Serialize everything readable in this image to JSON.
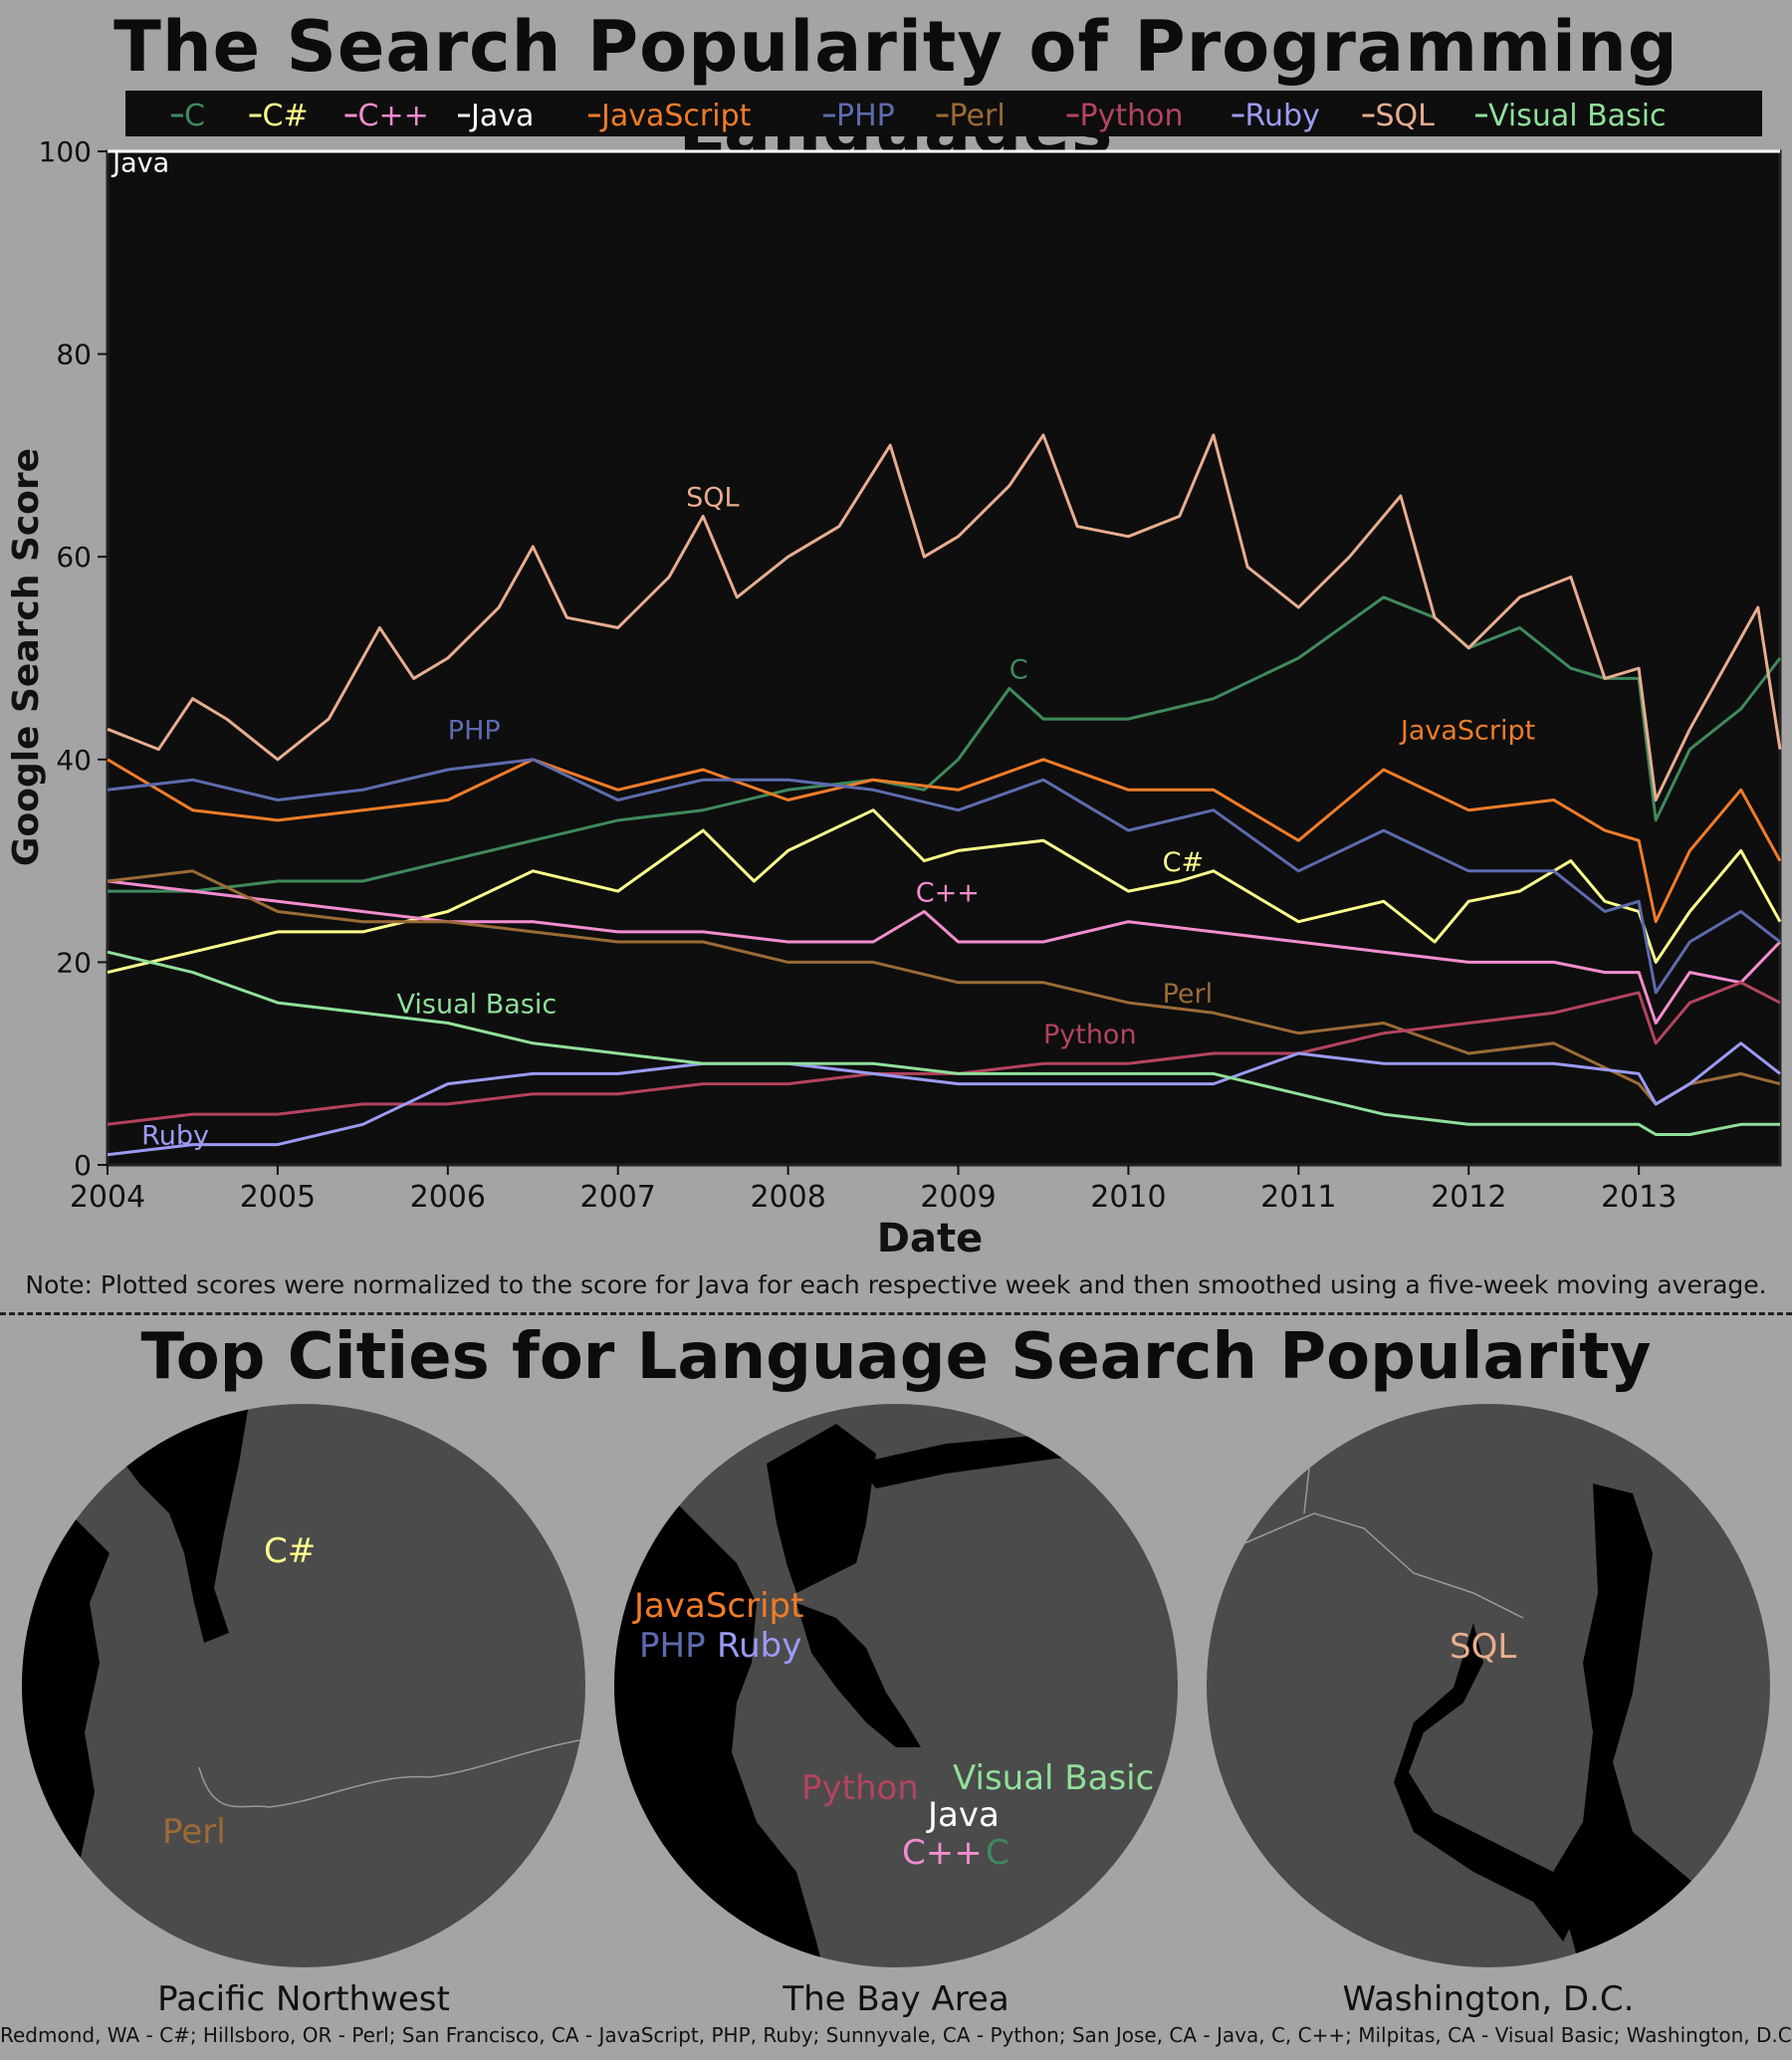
{
  "title": "The Search Popularity of Programming Languages",
  "note": "Note: Plotted scores were normalized to the score for Java for each respective week and then smoothed using a five-week moving average.",
  "subtitle": "Top Cities for Language Search Popularity",
  "footer": "Redmond, WA - C#; Hillsboro, OR - Perl; San Francisco, CA - JavaScript, PHP, Ruby; Sunnyvale, CA - Python; San Jose, CA - Java, C, C++; Milpitas, CA - Visual Basic; Washington, D.C. - SQL",
  "chart_data": {
    "type": "line",
    "xlabel": "Date",
    "ylabel": "Google Search Score",
    "xlim": [
      2004.0,
      2013.83
    ],
    "ylim": [
      0,
      100
    ],
    "x_ticks": [
      "2004",
      "2005",
      "2006",
      "2007",
      "2008",
      "2009",
      "2010",
      "2011",
      "2012",
      "2013"
    ],
    "y_ticks": [
      0,
      20,
      40,
      60,
      80,
      100
    ],
    "grid": false,
    "legend_position": "top",
    "legend": [
      "C",
      "C#",
      "C++",
      "Java",
      "JavaScript",
      "PHP",
      "Perl",
      "Python",
      "Ruby",
      "SQL",
      "Visual Basic"
    ],
    "series": [
      {
        "name": "C",
        "color": "#3f8a5c",
        "label": "C",
        "label_at": [
          2009.3,
          48
        ],
        "x": [
          2004.0,
          2004.5,
          2005.0,
          2005.5,
          2006.0,
          2006.5,
          2007.0,
          2007.5,
          2008.0,
          2008.5,
          2008.8,
          2009.0,
          2009.3,
          2009.5,
          2010.0,
          2010.5,
          2011.0,
          2011.5,
          2011.8,
          2012.0,
          2012.3,
          2012.6,
          2012.8,
          2013.0,
          2013.1,
          2013.3,
          2013.6,
          2013.83
        ],
        "y": [
          27,
          27,
          28,
          28,
          30,
          32,
          34,
          35,
          37,
          38,
          37,
          40,
          47,
          44,
          44,
          46,
          50,
          56,
          54,
          51,
          53,
          49,
          48,
          48,
          34,
          41,
          45,
          50
        ]
      },
      {
        "name": "C#",
        "color": "#fdfd8c",
        "label": "C#",
        "label_at": [
          2010.2,
          29
        ],
        "x": [
          2004.0,
          2004.5,
          2005.0,
          2005.5,
          2006.0,
          2006.5,
          2007.0,
          2007.5,
          2007.8,
          2008.0,
          2008.5,
          2008.8,
          2009.0,
          2009.5,
          2010.0,
          2010.3,
          2010.5,
          2011.0,
          2011.5,
          2011.8,
          2012.0,
          2012.3,
          2012.6,
          2012.8,
          2013.0,
          2013.1,
          2013.3,
          2013.6,
          2013.83
        ],
        "y": [
          19,
          21,
          23,
          23,
          25,
          29,
          27,
          33,
          28,
          31,
          35,
          30,
          31,
          32,
          27,
          28,
          29,
          24,
          26,
          22,
          26,
          27,
          30,
          26,
          25,
          20,
          25,
          31,
          24
        ]
      },
      {
        "name": "C++",
        "color": "#f38dcf",
        "label": "C++",
        "label_at": [
          2008.75,
          26
        ],
        "x": [
          2004.0,
          2004.5,
          2005.0,
          2005.5,
          2006.0,
          2006.5,
          2007.0,
          2007.5,
          2008.0,
          2008.5,
          2008.8,
          2009.0,
          2009.5,
          2010.0,
          2010.5,
          2011.0,
          2011.5,
          2012.0,
          2012.5,
          2012.8,
          2013.0,
          2013.1,
          2013.3,
          2013.6,
          2013.83
        ],
        "y": [
          28,
          27,
          26,
          25,
          24,
          24,
          23,
          23,
          22,
          22,
          25,
          22,
          22,
          24,
          23,
          22,
          21,
          20,
          20,
          19,
          19,
          14,
          19,
          18,
          22
        ]
      },
      {
        "name": "Java",
        "color": "#ffffff",
        "label": "Java",
        "label_at": [
          2004.03,
          98
        ],
        "x": [
          2004.0,
          2013.83
        ],
        "y": [
          100,
          100
        ]
      },
      {
        "name": "JavaScript",
        "color": "#f07c28",
        "label": "JavaScript",
        "label_at": [
          2011.6,
          42
        ],
        "x": [
          2004.0,
          2004.5,
          2005.0,
          2005.5,
          2006.0,
          2006.5,
          2007.0,
          2007.5,
          2008.0,
          2008.5,
          2009.0,
          2009.5,
          2010.0,
          2010.5,
          2011.0,
          2011.5,
          2012.0,
          2012.5,
          2012.8,
          2013.0,
          2013.1,
          2013.3,
          2013.6,
          2013.83
        ],
        "y": [
          40,
          35,
          34,
          35,
          36,
          40,
          37,
          39,
          36,
          38,
          37,
          40,
          37,
          37,
          32,
          39,
          35,
          36,
          33,
          32,
          24,
          31,
          37,
          30
        ]
      },
      {
        "name": "PHP",
        "color": "#5d6bae",
        "label": "PHP",
        "label_at": [
          2006.0,
          42
        ],
        "x": [
          2004.0,
          2004.5,
          2005.0,
          2005.5,
          2006.0,
          2006.5,
          2007.0,
          2007.5,
          2008.0,
          2008.5,
          2009.0,
          2009.5,
          2010.0,
          2010.5,
          2011.0,
          2011.5,
          2012.0,
          2012.5,
          2012.8,
          2013.0,
          2013.1,
          2013.3,
          2013.6,
          2013.83
        ],
        "y": [
          37,
          38,
          36,
          37,
          39,
          40,
          36,
          38,
          38,
          37,
          35,
          38,
          33,
          35,
          29,
          33,
          29,
          29,
          25,
          26,
          17,
          22,
          25,
          22
        ]
      },
      {
        "name": "Perl",
        "color": "#9b6b36",
        "label": "Perl",
        "label_at": [
          2010.2,
          16
        ],
        "x": [
          2004.0,
          2004.5,
          2005.0,
          2005.5,
          2006.0,
          2006.5,
          2007.0,
          2007.5,
          2008.0,
          2008.5,
          2009.0,
          2009.5,
          2010.0,
          2010.5,
          2011.0,
          2011.5,
          2012.0,
          2012.5,
          2013.0,
          2013.1,
          2013.3,
          2013.6,
          2013.83
        ],
        "y": [
          28,
          29,
          25,
          24,
          24,
          23,
          22,
          22,
          20,
          20,
          18,
          18,
          16,
          15,
          13,
          14,
          11,
          12,
          8,
          6,
          8,
          9,
          8
        ]
      },
      {
        "name": "Python",
        "color": "#b3445e",
        "label": "Python",
        "label_at": [
          2009.5,
          12
        ],
        "x": [
          2004.0,
          2004.5,
          2005.0,
          2005.5,
          2006.0,
          2006.5,
          2007.0,
          2007.5,
          2008.0,
          2008.5,
          2009.0,
          2009.5,
          2010.0,
          2010.5,
          2011.0,
          2011.5,
          2012.0,
          2012.5,
          2013.0,
          2013.1,
          2013.3,
          2013.6,
          2013.83
        ],
        "y": [
          4,
          5,
          5,
          6,
          6,
          7,
          7,
          8,
          8,
          9,
          9,
          10,
          10,
          11,
          11,
          13,
          14,
          15,
          17,
          12,
          16,
          18,
          16
        ]
      },
      {
        "name": "Ruby",
        "color": "#9b9bf6",
        "label": "Ruby",
        "label_at": [
          2004.2,
          2
        ],
        "x": [
          2004.0,
          2004.5,
          2005.0,
          2005.5,
          2006.0,
          2006.5,
          2007.0,
          2007.5,
          2008.0,
          2008.5,
          2009.0,
          2009.5,
          2010.0,
          2010.5,
          2011.0,
          2011.5,
          2012.0,
          2012.5,
          2013.0,
          2013.1,
          2013.3,
          2013.6,
          2013.83
        ],
        "y": [
          1,
          2,
          2,
          4,
          8,
          9,
          9,
          10,
          10,
          9,
          8,
          8,
          8,
          8,
          11,
          10,
          10,
          10,
          9,
          6,
          8,
          12,
          9
        ]
      },
      {
        "name": "SQL",
        "color": "#e8ad8f",
        "label": "SQL",
        "label_at": [
          2007.4,
          65
        ],
        "x": [
          2004.0,
          2004.3,
          2004.5,
          2004.7,
          2005.0,
          2005.3,
          2005.6,
          2005.8,
          2006.0,
          2006.3,
          2006.5,
          2006.7,
          2007.0,
          2007.3,
          2007.5,
          2007.7,
          2008.0,
          2008.3,
          2008.6,
          2008.8,
          2009.0,
          2009.3,
          2009.5,
          2009.7,
          2010.0,
          2010.3,
          2010.5,
          2010.7,
          2011.0,
          2011.3,
          2011.6,
          2011.8,
          2012.0,
          2012.3,
          2012.6,
          2012.8,
          2013.0,
          2013.1,
          2013.3,
          2013.6,
          2013.7,
          2013.83
        ],
        "y": [
          43,
          41,
          46,
          44,
          40,
          44,
          53,
          48,
          50,
          55,
          61,
          54,
          53,
          58,
          64,
          56,
          60,
          63,
          71,
          60,
          62,
          67,
          72,
          63,
          62,
          64,
          72,
          59,
          55,
          60,
          66,
          54,
          51,
          56,
          58,
          48,
          49,
          36,
          43,
          52,
          55,
          41
        ]
      },
      {
        "name": "Visual Basic",
        "color": "#90e09a",
        "label": "Visual Basic",
        "label_at": [
          2005.7,
          15
        ],
        "x": [
          2004.0,
          2004.5,
          2005.0,
          2005.5,
          2006.0,
          2006.5,
          2007.0,
          2007.5,
          2008.0,
          2008.5,
          2009.0,
          2009.5,
          2010.0,
          2010.5,
          2011.0,
          2011.5,
          2012.0,
          2012.5,
          2013.0,
          2013.1,
          2013.3,
          2013.6,
          2013.83
        ],
        "y": [
          21,
          19,
          16,
          15,
          14,
          12,
          11,
          10,
          10,
          10,
          9,
          9,
          9,
          9,
          7,
          5,
          4,
          4,
          4,
          3,
          3,
          4,
          4
        ]
      }
    ]
  },
  "maps": [
    {
      "title": "Pacific Northwest",
      "labels": [
        {
          "text": "C#",
          "color": "#fdfd8c"
        },
        {
          "text": "Perl",
          "color": "#9b6b36"
        }
      ]
    },
    {
      "title": "The Bay Area",
      "labels": [
        {
          "text": "JavaScript",
          "color": "#f07c28"
        },
        {
          "text": "PHP",
          "color": "#5d6bae"
        },
        {
          "text": "Ruby",
          "color": "#9b9bf6"
        },
        {
          "text": "Python",
          "color": "#b3445e"
        },
        {
          "text": "Visual Basic",
          "color": "#90e09a"
        },
        {
          "text": "Java",
          "color": "#ffffff"
        },
        {
          "text": "C++",
          "color": "#f38dcf"
        },
        {
          "text": "C",
          "color": "#3f8a5c"
        }
      ]
    },
    {
      "title": "Washington, D.C.",
      "labels": [
        {
          "text": "SQL",
          "color": "#e8ad8f"
        }
      ]
    }
  ]
}
